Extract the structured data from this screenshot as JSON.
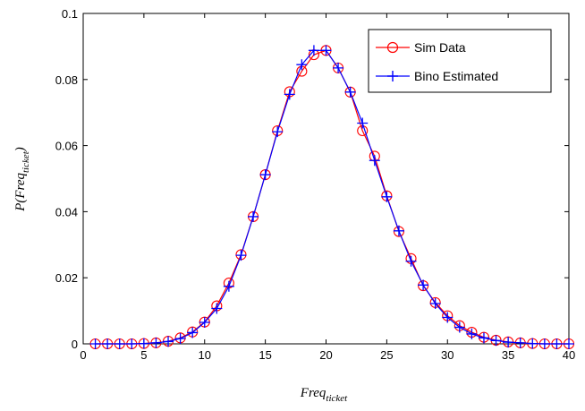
{
  "chart_data": {
    "type": "line",
    "xlabel": {
      "base": "Freq",
      "sub": "ticket"
    },
    "ylabel": {
      "prefix": "P(",
      "base": "Freq",
      "sub": "ticket",
      "suffix": ")"
    },
    "xlim": [
      0,
      40
    ],
    "ylim": [
      0,
      0.1
    ],
    "xticks": [
      0,
      5,
      10,
      15,
      20,
      25,
      30,
      35,
      40
    ],
    "yticks": [
      0,
      0.02,
      0.04,
      0.06,
      0.08,
      0.1
    ],
    "ytick_labels": [
      "0",
      "0.02",
      "0.04",
      "0.06",
      "0.08",
      "0.1"
    ],
    "grid": false,
    "legend_position": "top-right",
    "x": [
      1,
      2,
      3,
      4,
      5,
      6,
      7,
      8,
      9,
      10,
      11,
      12,
      13,
      14,
      15,
      16,
      17,
      18,
      19,
      20,
      21,
      22,
      23,
      24,
      25,
      26,
      27,
      28,
      29,
      30,
      31,
      32,
      33,
      34,
      35,
      36,
      37,
      38,
      39,
      40
    ],
    "series": [
      {
        "name": "Sim Data",
        "color": "#ff0000",
        "marker": "circle",
        "values": [
          0,
          0,
          0,
          0,
          0.0001,
          0.0003,
          0.0008,
          0.0018,
          0.0036,
          0.0066,
          0.0115,
          0.0184,
          0.027,
          0.0385,
          0.0512,
          0.0645,
          0.0763,
          0.0825,
          0.0875,
          0.0888,
          0.0835,
          0.0762,
          0.0645,
          0.0568,
          0.0448,
          0.034,
          0.0258,
          0.0176,
          0.0125,
          0.0085,
          0.0055,
          0.0035,
          0.002,
          0.0011,
          0.0006,
          0.0003,
          0.0001,
          0,
          0,
          0
        ]
      },
      {
        "name": "Bino Estimated",
        "color": "#0000ff",
        "marker": "plus",
        "values": [
          0,
          0,
          0,
          0,
          0.0001,
          0.0003,
          0.0007,
          0.0016,
          0.0034,
          0.0065,
          0.0107,
          0.0174,
          0.0268,
          0.0385,
          0.0512,
          0.0642,
          0.0755,
          0.0845,
          0.0888,
          0.0888,
          0.0835,
          0.0762,
          0.0668,
          0.0555,
          0.0445,
          0.0342,
          0.025,
          0.0178,
          0.0122,
          0.008,
          0.005,
          0.003,
          0.0018,
          0.001,
          0.0005,
          0.0003,
          0.0001,
          0,
          0,
          0
        ]
      }
    ]
  }
}
